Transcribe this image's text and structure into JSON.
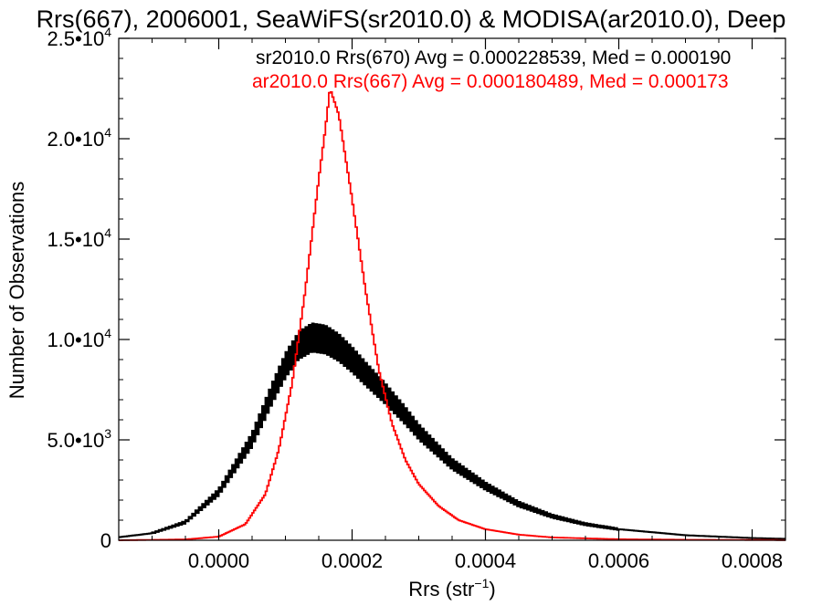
{
  "chart_data": {
    "type": "histogram",
    "title": "Rrs(667), 2006001, SeaWiFS(sr2010.0) & MODISA(ar2010.0), Deep",
    "xlabel": "Rrs (str",
    "xlabel_sup": "−1",
    "xlabel_end": ")",
    "ylabel": "Number of Observations",
    "xlim": [
      -0.00015,
      0.00085
    ],
    "ylim": [
      0,
      25000
    ],
    "x_ticks": [
      {
        "value": 0.0,
        "label": "0.0000"
      },
      {
        "value": 0.0002,
        "label": "0.0002"
      },
      {
        "value": 0.0004,
        "label": "0.0004"
      },
      {
        "value": 0.0006,
        "label": "0.0006"
      },
      {
        "value": 0.0008,
        "label": "0.0008"
      }
    ],
    "y_ticks": [
      {
        "value": 0,
        "mant": "0",
        "exp": ""
      },
      {
        "value": 5000,
        "mant": "5.0•10",
        "exp": "3"
      },
      {
        "value": 10000,
        "mant": "1.0•10",
        "exp": "4"
      },
      {
        "value": 15000,
        "mant": "1.5•10",
        "exp": "4"
      },
      {
        "value": 20000,
        "mant": "2.0•10",
        "exp": "4"
      },
      {
        "value": 25000,
        "mant": "2.5•10",
        "exp": "4"
      }
    ],
    "grid": false,
    "legend_position": "top-right",
    "series": [
      {
        "name": "sr2010.0 Rrs(670) Avg = 0.000228539, Med = 0.000190",
        "label_seg1": "sr2010.0 Rrs(670) Avg = 0.000228539, Med = 0.000190",
        "color": "#000000",
        "style": "jagged",
        "mean": 0.000228539,
        "median": 0.00019,
        "points": [
          [
            -0.00015,
            150
          ],
          [
            -0.0001,
            350
          ],
          [
            -5e-05,
            900
          ],
          [
            0.0,
            2400
          ],
          [
            5e-05,
            5000
          ],
          [
            8e-05,
            7300
          ],
          [
            0.0001,
            8700
          ],
          [
            0.00012,
            9700
          ],
          [
            0.00014,
            10100
          ],
          [
            0.00016,
            10000
          ],
          [
            0.00018,
            9600
          ],
          [
            0.0002,
            9000
          ],
          [
            0.00022,
            8300
          ],
          [
            0.00025,
            7300
          ],
          [
            0.00028,
            6200
          ],
          [
            0.0003,
            5400
          ],
          [
            0.00035,
            3800
          ],
          [
            0.0004,
            2700
          ],
          [
            0.00045,
            1800
          ],
          [
            0.0005,
            1200
          ],
          [
            0.00055,
            800
          ],
          [
            0.0006,
            550
          ],
          [
            0.0007,
            250
          ],
          [
            0.0008,
            110
          ],
          [
            0.00085,
            70
          ]
        ]
      },
      {
        "name": "ar2010.0 Rrs(667) Avg = 0.000180489, Med = 0.000173",
        "label_seg1": "ar2010.0 Rrs(667) Avg = 0.000180489, Med = 0.000173",
        "color": "#ff0000",
        "style": "smooth",
        "mean": 0.000180489,
        "median": 0.000173,
        "points": [
          [
            -0.00015,
            0
          ],
          [
            -5e-05,
            40
          ],
          [
            0.0,
            180
          ],
          [
            4e-05,
            800
          ],
          [
            7e-05,
            2300
          ],
          [
            9e-05,
            4500
          ],
          [
            0.00011,
            7800
          ],
          [
            0.00013,
            12500
          ],
          [
            0.00015,
            18000
          ],
          [
            0.00016,
            20500
          ],
          [
            0.000167,
            22500
          ],
          [
            0.00018,
            21200
          ],
          [
            0.0002,
            17000
          ],
          [
            0.00022,
            12500
          ],
          [
            0.00024,
            8500
          ],
          [
            0.00026,
            5800
          ],
          [
            0.00028,
            4000
          ],
          [
            0.0003,
            2800
          ],
          [
            0.00033,
            1700
          ],
          [
            0.00036,
            1000
          ],
          [
            0.0004,
            550
          ],
          [
            0.00045,
            280
          ],
          [
            0.0005,
            140
          ],
          [
            0.0006,
            50
          ],
          [
            0.0007,
            25
          ],
          [
            0.00085,
            10
          ]
        ]
      }
    ]
  }
}
